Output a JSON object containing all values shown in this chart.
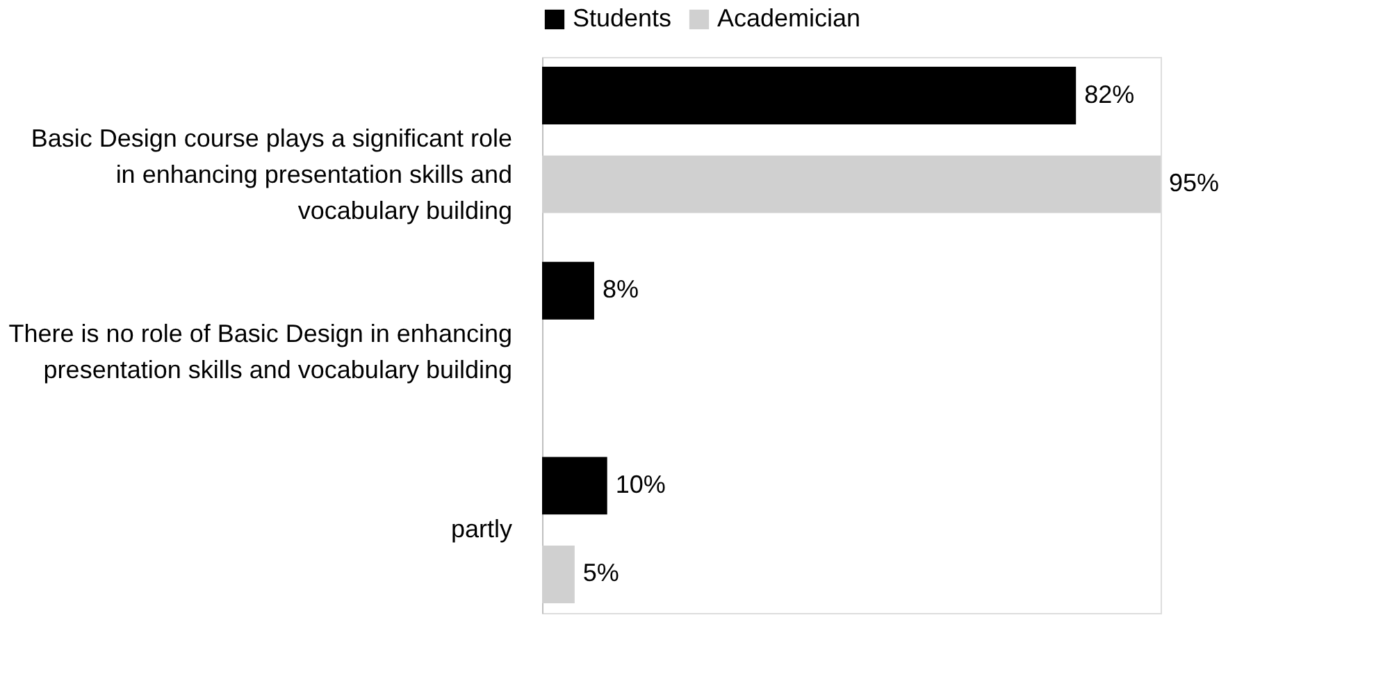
{
  "chart_data": {
    "type": "bar",
    "orientation": "horizontal",
    "legend": "top",
    "categories": [
      "Basic Design course plays a significant role in enhancing presentation skills and vocabulary building",
      "There is no role of Basic Design in enhancing presentation skills and vocabulary building",
      "partly"
    ],
    "series": [
      {
        "name": "Students",
        "color": "#000000",
        "values": [
          82,
          8,
          10
        ],
        "value_labels": [
          "82%",
          "8%",
          "10%"
        ]
      },
      {
        "name": "Academician",
        "color": "#d0d0d0",
        "values": [
          95,
          null,
          5
        ],
        "value_labels": [
          "95%",
          null,
          "5%"
        ]
      }
    ]
  }
}
